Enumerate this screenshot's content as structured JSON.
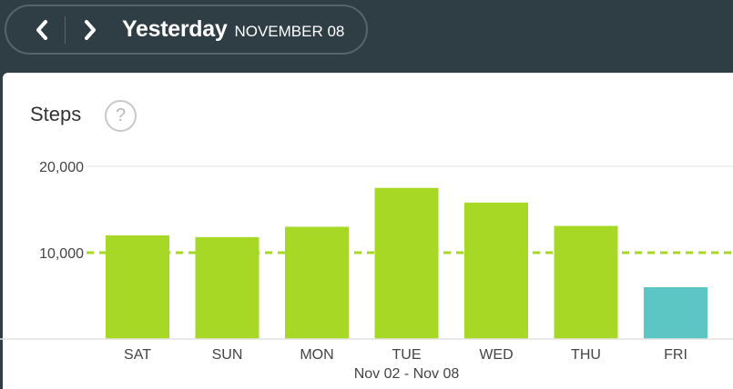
{
  "nav": {
    "title": "Yesterday",
    "date": "NOVEMBER 08",
    "prev_icon": "chevron-left-icon",
    "next_icon": "chevron-right-icon"
  },
  "card": {
    "title": "Steps",
    "help_icon": "question-mark-icon",
    "help_glyph": "?"
  },
  "colors": {
    "background": "#2f3d44",
    "bar": "#a6d825",
    "bar_highlight": "#5bc6c4",
    "goal_line": "#a6d825"
  },
  "chart_data": {
    "type": "bar",
    "categories": [
      "SAT",
      "SUN",
      "MON",
      "TUE",
      "WED",
      "THU",
      "FRI"
    ],
    "values": [
      12000,
      11800,
      13000,
      17500,
      15800,
      13100,
      6000
    ],
    "highlight_index": 6,
    "goal": 10000,
    "ylim": [
      0,
      20000
    ],
    "yticks": [
      {
        "value": 10000,
        "label": "10,000"
      },
      {
        "value": 20000,
        "label": "20,000"
      }
    ],
    "xlabel": "Nov 02 - Nov 08",
    "ylabel": "",
    "title": "Steps"
  }
}
